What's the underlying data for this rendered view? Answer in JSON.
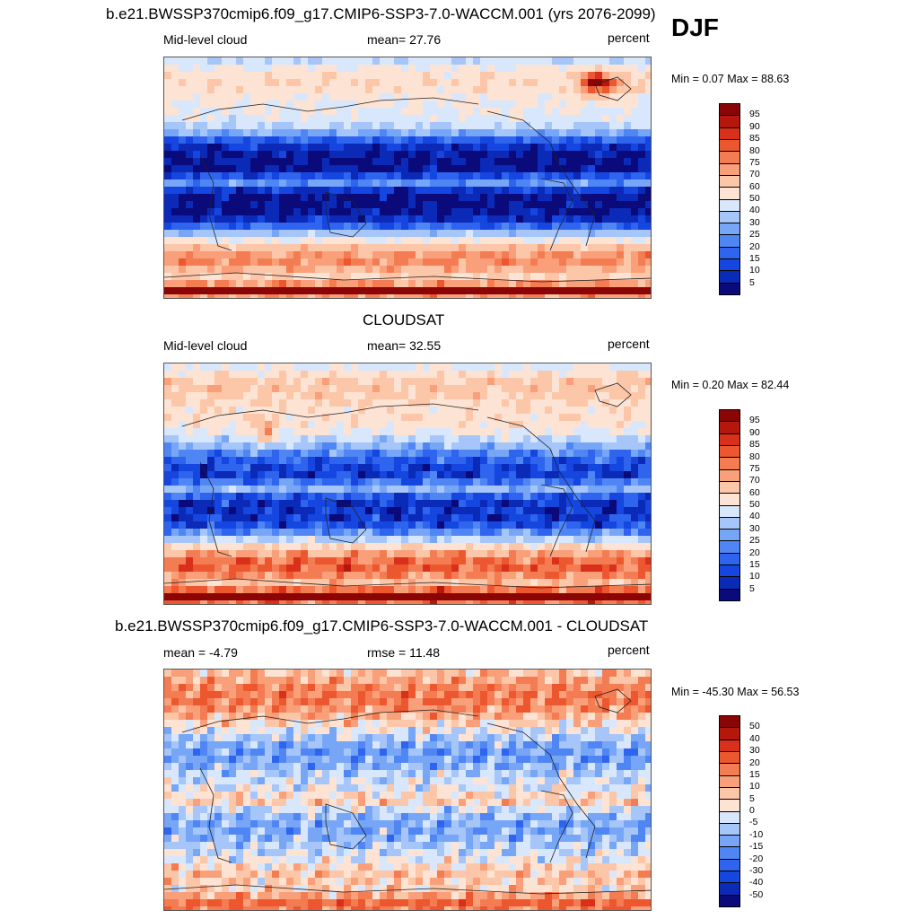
{
  "season": "DJF",
  "palettes": {
    "abs": [
      "#0a0a7a",
      "#0b2ab8",
      "#1646e0",
      "#2e64ee",
      "#4f86f4",
      "#78a6f7",
      "#a6c6fa",
      "#d8e7fc",
      "#fde3d3",
      "#fcc6a8",
      "#f9a07b",
      "#f47c53",
      "#ec572f",
      "#d8301b",
      "#b5170c",
      "#8a0606"
    ],
    "diff": [
      "#0a0a7a",
      "#0b2ab8",
      "#1646e0",
      "#2e64ee",
      "#4f86f4",
      "#78a6f7",
      "#a6c6fa",
      "#d8e7fc",
      "#fde3d3",
      "#fcc6a8",
      "#f9a07b",
      "#f47c53",
      "#ec572f",
      "#d8301b",
      "#b5170c",
      "#8a0606"
    ]
  },
  "panels": [
    {
      "title": "b.e21.BWSSP370cmip6.f09_g17.CMIP6-SSP3-7.0-WACCM.001 (yrs 2076-2099)",
      "left_label": "Mid-level cloud",
      "center_label": "mean=  27.76",
      "right_label": "percent",
      "minmax": "Min =   0.07 Max =  88.63",
      "colorbar_levels": [
        "95",
        "90",
        "85",
        "80",
        "75",
        "70",
        "60",
        "50",
        "40",
        "30",
        "25",
        "20",
        "15",
        "10",
        "5"
      ]
    },
    {
      "title": "CLOUDSAT",
      "left_label": "Mid-level cloud",
      "center_label": "mean=  32.55",
      "right_label": "percent",
      "minmax": "Min =   0.20 Max =  82.44",
      "colorbar_levels": [
        "95",
        "90",
        "85",
        "80",
        "75",
        "70",
        "60",
        "50",
        "40",
        "30",
        "25",
        "20",
        "15",
        "10",
        "5"
      ]
    },
    {
      "title": "b.e21.BWSSP370cmip6.f09_g17.CMIP6-SSP3-7.0-WACCM.001 - CLOUDSAT",
      "left_label": "mean =  -4.79",
      "center_label": "rmse =  11.48",
      "right_label": "percent",
      "minmax": "Min = -45.30 Max =  56.53",
      "colorbar_levels": [
        "50",
        "40",
        "30",
        "20",
        "15",
        "10",
        "5",
        "0",
        "-5",
        "-10",
        "-15",
        "-20",
        "-30",
        "-40",
        "-50"
      ]
    }
  ]
}
